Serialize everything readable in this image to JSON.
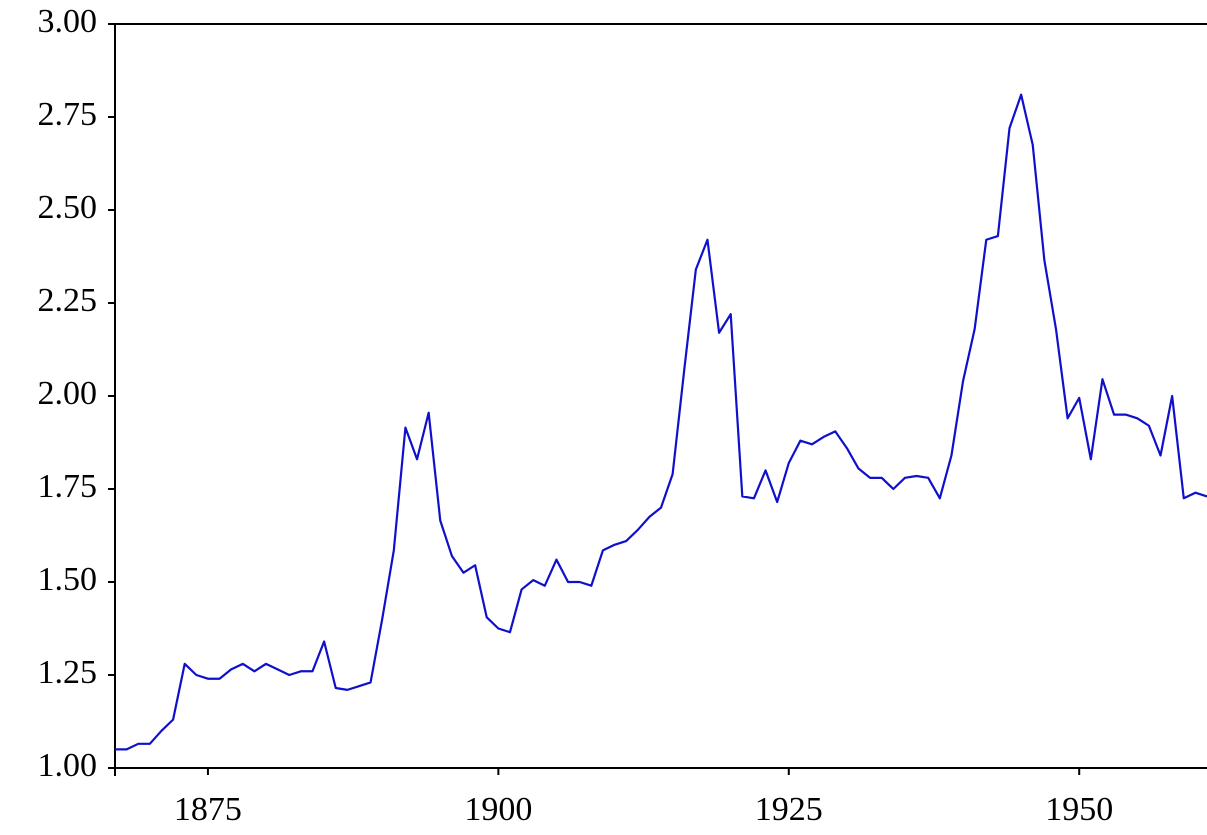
{
  "chart_data": {
    "type": "line",
    "color": "#1010cc",
    "x": [
      1867,
      1868,
      1869,
      1870,
      1871,
      1872,
      1873,
      1874,
      1875,
      1876,
      1877,
      1878,
      1879,
      1880,
      1881,
      1882,
      1883,
      1884,
      1885,
      1886,
      1887,
      1888,
      1889,
      1890,
      1891,
      1892,
      1893,
      1894,
      1895,
      1896,
      1897,
      1898,
      1899,
      1900,
      1901,
      1902,
      1903,
      1904,
      1905,
      1906,
      1907,
      1908,
      1909,
      1910,
      1911,
      1912,
      1913,
      1914,
      1915,
      1916,
      1917,
      1918,
      1919,
      1920,
      1921,
      1922,
      1923,
      1924,
      1925,
      1926,
      1927,
      1928,
      1929,
      1930,
      1931,
      1932,
      1933,
      1934,
      1935,
      1936,
      1937,
      1938,
      1939,
      1940,
      1941,
      1942,
      1943,
      1944,
      1945,
      1946,
      1947,
      1948,
      1949,
      1950,
      1951,
      1952,
      1953,
      1954,
      1955,
      1956,
      1957,
      1958,
      1959,
      1960,
      1961
    ],
    "values": [
      1.05,
      1.05,
      1.065,
      1.065,
      1.1,
      1.13,
      1.28,
      1.25,
      1.24,
      1.24,
      1.265,
      1.28,
      1.26,
      1.28,
      1.265,
      1.25,
      1.26,
      1.26,
      1.34,
      1.215,
      1.21,
      1.22,
      1.23,
      1.4,
      1.585,
      1.915,
      1.83,
      1.955,
      1.665,
      1.57,
      1.525,
      1.545,
      1.405,
      1.375,
      1.365,
      1.48,
      1.505,
      1.49,
      1.56,
      1.5,
      1.5,
      1.49,
      1.585,
      1.6,
      1.61,
      1.64,
      1.675,
      1.7,
      1.79,
      2.07,
      2.34,
      2.42,
      2.17,
      2.22,
      1.73,
      1.725,
      1.8,
      1.715,
      1.82,
      1.88,
      1.87,
      1.89,
      1.905,
      1.86,
      1.805,
      1.78,
      1.78,
      1.75,
      1.78,
      1.785,
      1.78,
      1.725,
      1.84,
      2.04,
      2.18,
      2.42,
      2.43,
      2.72,
      2.81,
      2.675,
      2.365,
      2.18,
      1.94,
      1.995,
      1.83,
      2.045,
      1.95,
      1.95,
      1.94,
      1.92,
      1.84,
      2.0,
      1.725,
      1.74,
      1.73
    ],
    "xlim": [
      1867,
      1961
    ],
    "xticks": [
      1875,
      1900,
      1925,
      1950
    ],
    "ylim": [
      1,
      3
    ],
    "yticks": [
      {
        "value": 1,
        "label": "1.00"
      },
      {
        "value": 1.25,
        "label": "1.25"
      },
      {
        "value": 1.5,
        "label": "1.50"
      },
      {
        "value": 1.75,
        "label": "1.75"
      },
      {
        "value": 2,
        "label": "2.00"
      },
      {
        "value": 2.25,
        "label": "2.25"
      },
      {
        "value": 2.5,
        "label": "2.50"
      },
      {
        "value": 2.75,
        "label": "2.75"
      },
      {
        "value": 3,
        "label": "3.00"
      }
    ]
  }
}
